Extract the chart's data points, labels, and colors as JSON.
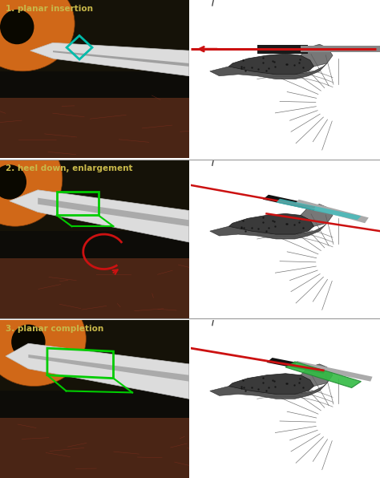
{
  "labels": [
    "1. planar insertion",
    "2. heel down, enlargement",
    "3. planar completion"
  ],
  "label_color": "#c8b84a",
  "bg_color": "#ffffff",
  "separator_color": "#999999",
  "eye_orange": "#d06818",
  "red_line_color": "#cc1111",
  "green_color": "#22aa44",
  "teal_color": "#44aaaa",
  "dark_bg": "#1a1510",
  "skin_color": "#6b3a28",
  "instrument_white": "#e0e0e0",
  "instrument_gray": "#b0b0b0",
  "instrument_dark": "#555555"
}
